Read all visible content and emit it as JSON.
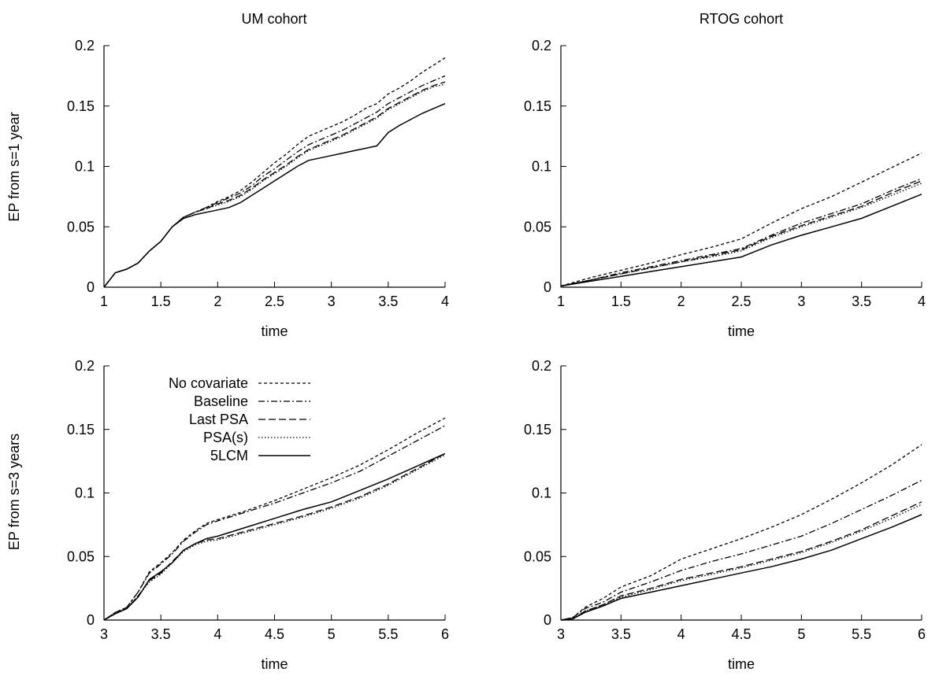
{
  "figure": {
    "row_labels": [
      "EP from s=1 year",
      "EP from s=3 years"
    ],
    "column_titles": [
      "UM cohort",
      "RTOG cohort"
    ]
  },
  "chart_data": [
    {
      "type": "line",
      "title": "UM cohort",
      "xlabel": "time",
      "ylabel": "EP from s=1 year",
      "xlim": [
        1,
        4
      ],
      "ylim": [
        0,
        0.2
      ],
      "xticks": [
        1,
        1.5,
        2,
        2.5,
        3,
        3.5,
        4
      ],
      "yticks": [
        0,
        0.05,
        0.1,
        0.15,
        0.2
      ],
      "xtick_labels": [
        "1",
        "1.5",
        "2",
        "2.5",
        "3",
        "3.5",
        "4"
      ],
      "ytick_labels": [
        "0",
        "0.05",
        "0.1",
        "0.15",
        "0.2"
      ],
      "grid": false,
      "legend": null,
      "series": [
        {
          "name": "No covariate",
          "style": "dashed-fine",
          "x": [
            1,
            1.1,
            1.2,
            1.3,
            1.4,
            1.5,
            1.6,
            1.7,
            1.8,
            1.9,
            2,
            2.1,
            2.2,
            2.3,
            2.4,
            2.5,
            2.6,
            2.7,
            2.8,
            2.9,
            3,
            3.1,
            3.2,
            3.3,
            3.4,
            3.5,
            3.6,
            3.7,
            3.8,
            3.9,
            4
          ],
          "y": [
            0,
            0.012,
            0.015,
            0.02,
            0.03,
            0.038,
            0.05,
            0.058,
            0.062,
            0.066,
            0.071,
            0.075,
            0.08,
            0.087,
            0.095,
            0.103,
            0.11,
            0.118,
            0.125,
            0.129,
            0.133,
            0.137,
            0.142,
            0.148,
            0.152,
            0.16,
            0.165,
            0.171,
            0.178,
            0.184,
            0.19
          ]
        },
        {
          "name": "Baseline",
          "style": "dashdot",
          "x": [
            1,
            1.1,
            1.2,
            1.3,
            1.4,
            1.5,
            1.6,
            1.7,
            1.8,
            1.9,
            2,
            2.1,
            2.2,
            2.3,
            2.4,
            2.5,
            2.6,
            2.7,
            2.8,
            2.9,
            3,
            3.1,
            3.2,
            3.3,
            3.4,
            3.5,
            3.6,
            3.7,
            3.8,
            3.9,
            4
          ],
          "y": [
            0,
            0.012,
            0.015,
            0.02,
            0.03,
            0.038,
            0.05,
            0.058,
            0.062,
            0.066,
            0.07,
            0.074,
            0.078,
            0.084,
            0.092,
            0.098,
            0.105,
            0.112,
            0.118,
            0.122,
            0.126,
            0.13,
            0.135,
            0.14,
            0.145,
            0.152,
            0.157,
            0.162,
            0.167,
            0.171,
            0.175
          ]
        },
        {
          "name": "Last PSA",
          "style": "dashed",
          "x": [
            1,
            1.1,
            1.2,
            1.3,
            1.4,
            1.5,
            1.6,
            1.7,
            1.8,
            1.9,
            2,
            2.1,
            2.2,
            2.3,
            2.4,
            2.5,
            2.6,
            2.7,
            2.8,
            2.9,
            3,
            3.1,
            3.2,
            3.3,
            3.4,
            3.5,
            3.6,
            3.7,
            3.8,
            3.9,
            4
          ],
          "y": [
            0,
            0.012,
            0.015,
            0.02,
            0.03,
            0.038,
            0.05,
            0.058,
            0.062,
            0.065,
            0.069,
            0.072,
            0.076,
            0.082,
            0.089,
            0.095,
            0.101,
            0.108,
            0.114,
            0.118,
            0.122,
            0.126,
            0.131,
            0.136,
            0.141,
            0.148,
            0.153,
            0.158,
            0.163,
            0.167,
            0.17
          ]
        },
        {
          "name": "PSA(s)",
          "style": "dotted",
          "x": [
            1,
            1.1,
            1.2,
            1.3,
            1.4,
            1.5,
            1.6,
            1.7,
            1.8,
            1.9,
            2,
            2.1,
            2.2,
            2.3,
            2.4,
            2.5,
            2.6,
            2.7,
            2.8,
            2.9,
            3,
            3.1,
            3.2,
            3.3,
            3.4,
            3.5,
            3.6,
            3.7,
            3.8,
            3.9,
            4
          ],
          "y": [
            0,
            0.012,
            0.015,
            0.02,
            0.03,
            0.038,
            0.05,
            0.058,
            0.062,
            0.065,
            0.068,
            0.071,
            0.075,
            0.081,
            0.088,
            0.094,
            0.1,
            0.107,
            0.113,
            0.117,
            0.121,
            0.125,
            0.13,
            0.135,
            0.14,
            0.147,
            0.152,
            0.157,
            0.162,
            0.166,
            0.168
          ]
        },
        {
          "name": "5LCM",
          "style": "solid",
          "x": [
            1,
            1.1,
            1.2,
            1.3,
            1.4,
            1.5,
            1.6,
            1.7,
            1.8,
            1.9,
            2,
            2.1,
            2.2,
            2.3,
            2.4,
            2.5,
            2.6,
            2.7,
            2.8,
            2.9,
            3,
            3.1,
            3.2,
            3.3,
            3.4,
            3.5,
            3.6,
            3.7,
            3.8,
            3.9,
            4
          ],
          "y": [
            0,
            0.012,
            0.015,
            0.02,
            0.03,
            0.038,
            0.05,
            0.057,
            0.06,
            0.062,
            0.064,
            0.066,
            0.07,
            0.076,
            0.082,
            0.088,
            0.094,
            0.1,
            0.105,
            0.107,
            0.109,
            0.111,
            0.113,
            0.115,
            0.117,
            0.128,
            0.134,
            0.139,
            0.144,
            0.148,
            0.152
          ]
        }
      ]
    },
    {
      "type": "line",
      "title": "RTOG cohort",
      "xlabel": "time",
      "ylabel": "",
      "xlim": [
        1,
        4
      ],
      "ylim": [
        0,
        0.2
      ],
      "xticks": [
        1,
        1.5,
        2,
        2.5,
        3,
        3.5,
        4
      ],
      "yticks": [
        0,
        0.05,
        0.1,
        0.15,
        0.2
      ],
      "xtick_labels": [
        "1",
        "1.5",
        "2",
        "2.5",
        "3",
        "3.5",
        "4"
      ],
      "ytick_labels": [
        "0",
        "0.05",
        "0.1",
        "0.15",
        "0.2"
      ],
      "grid": false,
      "legend": null,
      "series": [
        {
          "name": "No covariate",
          "style": "dashed-fine",
          "x": [
            1,
            1.25,
            1.5,
            1.75,
            2,
            2.25,
            2.5,
            2.75,
            3,
            3.25,
            3.5,
            3.75,
            4
          ],
          "y": [
            0.001,
            0.008,
            0.014,
            0.02,
            0.027,
            0.033,
            0.04,
            0.053,
            0.065,
            0.075,
            0.087,
            0.099,
            0.111
          ]
        },
        {
          "name": "Baseline",
          "style": "dashdot",
          "x": [
            1,
            1.25,
            1.5,
            1.75,
            2,
            2.25,
            2.5,
            2.75,
            3,
            3.25,
            3.5,
            3.75,
            4
          ],
          "y": [
            0.001,
            0.006,
            0.012,
            0.017,
            0.022,
            0.027,
            0.032,
            0.043,
            0.053,
            0.061,
            0.069,
            0.08,
            0.09
          ]
        },
        {
          "name": "Last PSA",
          "style": "dashed",
          "x": [
            1,
            1.25,
            1.5,
            1.75,
            2,
            2.25,
            2.5,
            2.75,
            3,
            3.25,
            3.5,
            3.75,
            4
          ],
          "y": [
            0.001,
            0.006,
            0.011,
            0.016,
            0.021,
            0.026,
            0.031,
            0.042,
            0.051,
            0.059,
            0.067,
            0.078,
            0.088
          ]
        },
        {
          "name": "PSA(s)",
          "style": "dotted",
          "x": [
            1,
            1.25,
            1.5,
            1.75,
            2,
            2.25,
            2.5,
            2.75,
            3,
            3.25,
            3.5,
            3.75,
            4
          ],
          "y": [
            0.001,
            0.006,
            0.011,
            0.016,
            0.021,
            0.025,
            0.03,
            0.041,
            0.05,
            0.058,
            0.066,
            0.076,
            0.086
          ]
        },
        {
          "name": "5LCM",
          "style": "solid",
          "x": [
            1,
            1.25,
            1.5,
            1.75,
            2,
            2.25,
            2.5,
            2.75,
            3,
            3.25,
            3.5,
            3.75,
            4
          ],
          "y": [
            0.001,
            0.005,
            0.009,
            0.013,
            0.017,
            0.021,
            0.025,
            0.035,
            0.043,
            0.05,
            0.057,
            0.067,
            0.077
          ]
        }
      ]
    },
    {
      "type": "line",
      "title": "",
      "xlabel": "time",
      "ylabel": "EP from s=3 years",
      "xlim": [
        3,
        6
      ],
      "ylim": [
        0,
        0.2
      ],
      "xticks": [
        3,
        3.5,
        4,
        4.5,
        5,
        5.5,
        6
      ],
      "yticks": [
        0,
        0.05,
        0.1,
        0.15,
        0.2
      ],
      "xtick_labels": [
        "3",
        "3.5",
        "4",
        "4.5",
        "5",
        "5.5",
        "6"
      ],
      "ytick_labels": [
        "0",
        "0.05",
        "0.1",
        "0.15",
        "0.2"
      ],
      "grid": false,
      "legend": "top-left",
      "series": [
        {
          "name": "No covariate",
          "style": "dashed-fine",
          "x": [
            3,
            3.1,
            3.2,
            3.3,
            3.4,
            3.5,
            3.6,
            3.7,
            3.8,
            3.9,
            4,
            4.25,
            4.5,
            4.75,
            5,
            5.25,
            5.5,
            5.75,
            6
          ],
          "y": [
            0,
            0.006,
            0.01,
            0.022,
            0.038,
            0.045,
            0.053,
            0.063,
            0.07,
            0.076,
            0.079,
            0.086,
            0.094,
            0.103,
            0.112,
            0.122,
            0.134,
            0.147,
            0.159
          ]
        },
        {
          "name": "Baseline",
          "style": "dashdot",
          "x": [
            3,
            3.1,
            3.2,
            3.3,
            3.4,
            3.5,
            3.6,
            3.7,
            3.8,
            3.9,
            4,
            4.25,
            4.5,
            4.75,
            5,
            5.25,
            5.5,
            5.75,
            6
          ],
          "y": [
            0,
            0.006,
            0.01,
            0.022,
            0.037,
            0.044,
            0.052,
            0.062,
            0.069,
            0.075,
            0.078,
            0.085,
            0.092,
            0.1,
            0.108,
            0.117,
            0.129,
            0.141,
            0.153
          ]
        },
        {
          "name": "Last PSA",
          "style": "dashed",
          "x": [
            3,
            3.1,
            3.2,
            3.3,
            3.4,
            3.5,
            3.6,
            3.7,
            3.8,
            3.9,
            4,
            4.25,
            4.5,
            4.75,
            5,
            5.25,
            5.5,
            5.75,
            6
          ],
          "y": [
            0,
            0.005,
            0.009,
            0.019,
            0.031,
            0.037,
            0.046,
            0.055,
            0.06,
            0.063,
            0.064,
            0.07,
            0.076,
            0.082,
            0.089,
            0.097,
            0.107,
            0.119,
            0.131
          ]
        },
        {
          "name": "PSA(s)",
          "style": "dotted",
          "x": [
            3,
            3.1,
            3.2,
            3.3,
            3.4,
            3.5,
            3.6,
            3.7,
            3.8,
            3.9,
            4,
            4.25,
            4.5,
            4.75,
            5,
            5.25,
            5.5,
            5.75,
            6
          ],
          "y": [
            0,
            0.005,
            0.009,
            0.019,
            0.03,
            0.036,
            0.045,
            0.054,
            0.059,
            0.062,
            0.063,
            0.069,
            0.075,
            0.081,
            0.088,
            0.096,
            0.106,
            0.118,
            0.13
          ]
        },
        {
          "name": "5LCM",
          "style": "solid",
          "x": [
            3,
            3.1,
            3.2,
            3.3,
            3.4,
            3.5,
            3.6,
            3.7,
            3.8,
            3.9,
            4,
            4.25,
            4.5,
            4.75,
            5,
            5.25,
            5.5,
            5.75,
            6
          ],
          "y": [
            0,
            0.005,
            0.009,
            0.018,
            0.032,
            0.038,
            0.045,
            0.055,
            0.06,
            0.064,
            0.066,
            0.073,
            0.08,
            0.087,
            0.093,
            0.102,
            0.111,
            0.121,
            0.131
          ]
        }
      ]
    },
    {
      "type": "line",
      "title": "",
      "xlabel": "time",
      "ylabel": "",
      "xlim": [
        3,
        6
      ],
      "ylim": [
        0,
        0.2
      ],
      "xticks": [
        3,
        3.5,
        4,
        4.5,
        5,
        5.5,
        6
      ],
      "yticks": [
        0,
        0.05,
        0.1,
        0.15,
        0.2
      ],
      "xtick_labels": [
        "3",
        "3.5",
        "4",
        "4.5",
        "5",
        "5.5",
        "6"
      ],
      "ytick_labels": [
        "0",
        "0.05",
        "0.1",
        "0.15",
        "0.2"
      ],
      "grid": false,
      "legend": null,
      "series": [
        {
          "name": "No covariate",
          "style": "dashed-fine",
          "x": [
            3,
            3.1,
            3.2,
            3.35,
            3.5,
            3.75,
            4,
            4.25,
            4.5,
            4.75,
            5,
            5.25,
            5.5,
            5.75,
            6
          ],
          "y": [
            0,
            0.002,
            0.01,
            0.017,
            0.026,
            0.035,
            0.048,
            0.056,
            0.064,
            0.073,
            0.083,
            0.095,
            0.108,
            0.122,
            0.138
          ]
        },
        {
          "name": "Baseline",
          "style": "dashdot",
          "x": [
            3,
            3.1,
            3.2,
            3.35,
            3.5,
            3.75,
            4,
            4.25,
            4.5,
            4.75,
            5,
            5.25,
            5.5,
            5.75,
            6
          ],
          "y": [
            0,
            0.002,
            0.009,
            0.014,
            0.022,
            0.03,
            0.039,
            0.046,
            0.052,
            0.059,
            0.066,
            0.076,
            0.087,
            0.098,
            0.11
          ]
        },
        {
          "name": "Last PSA",
          "style": "dashed",
          "x": [
            3,
            3.1,
            3.2,
            3.35,
            3.5,
            3.75,
            4,
            4.25,
            4.5,
            4.75,
            5,
            5.25,
            5.5,
            5.75,
            6
          ],
          "y": [
            0,
            0.001,
            0.007,
            0.012,
            0.019,
            0.025,
            0.032,
            0.037,
            0.042,
            0.048,
            0.054,
            0.062,
            0.071,
            0.082,
            0.093
          ]
        },
        {
          "name": "PSA(s)",
          "style": "dotted",
          "x": [
            3,
            3.1,
            3.2,
            3.35,
            3.5,
            3.75,
            4,
            4.25,
            4.5,
            4.75,
            5,
            5.25,
            5.5,
            5.75,
            6
          ],
          "y": [
            0,
            0.001,
            0.007,
            0.012,
            0.018,
            0.024,
            0.031,
            0.036,
            0.041,
            0.047,
            0.053,
            0.061,
            0.07,
            0.08,
            0.091
          ]
        },
        {
          "name": "5LCM",
          "style": "solid",
          "x": [
            3,
            3.1,
            3.2,
            3.35,
            3.5,
            3.75,
            4,
            4.25,
            4.5,
            4.75,
            5,
            5.25,
            5.5,
            5.75,
            6
          ],
          "y": [
            0,
            0.001,
            0.006,
            0.011,
            0.017,
            0.022,
            0.027,
            0.032,
            0.037,
            0.042,
            0.048,
            0.055,
            0.064,
            0.073,
            0.083
          ]
        }
      ]
    }
  ]
}
